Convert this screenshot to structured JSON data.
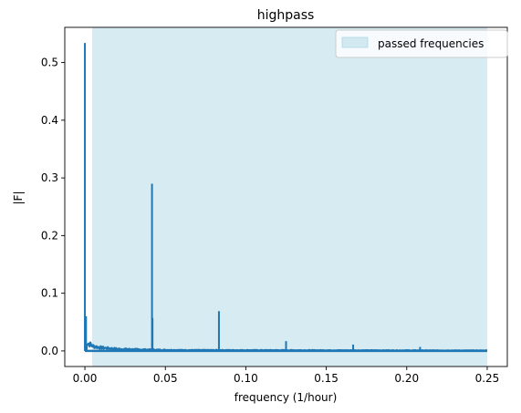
{
  "chart_data": {
    "type": "line",
    "title": "highpass",
    "xlabel": "frequency (1/hour)",
    "ylabel": "|F|",
    "xlim": [
      -0.0125,
      0.2625
    ],
    "ylim": [
      -0.027,
      0.561
    ],
    "xticks": [
      0.0,
      0.05,
      0.1,
      0.15,
      0.2,
      0.25
    ],
    "xtick_labels": [
      "0.00",
      "0.05",
      "0.10",
      "0.15",
      "0.20",
      "0.25"
    ],
    "yticks": [
      0.0,
      0.1,
      0.2,
      0.3,
      0.4,
      0.5
    ],
    "ytick_labels": [
      "0.0",
      "0.1",
      "0.2",
      "0.3",
      "0.4",
      "0.5"
    ],
    "grid": false,
    "legend": {
      "position": "top-right",
      "entries": [
        "passed frequencies"
      ]
    },
    "passband": {
      "name": "passed frequencies",
      "x_start": 0.0045,
      "x_end": 0.25,
      "color": "#add8e6"
    },
    "series": [
      {
        "color": "#1f77b4",
        "peaks": [
          {
            "x": 0.0,
            "y": 0.534
          },
          {
            "x": 0.0007,
            "y": 0.06
          },
          {
            "x": 0.0417,
            "y": 0.29
          },
          {
            "x": 0.042,
            "y": 0.057
          },
          {
            "x": 0.0833,
            "y": 0.069
          },
          {
            "x": 0.125,
            "y": 0.017
          },
          {
            "x": 0.1667,
            "y": 0.011
          },
          {
            "x": 0.2083,
            "y": 0.007
          }
        ],
        "noise_floor": [
          {
            "x": 0.001,
            "y": 0.022
          },
          {
            "x": 0.005,
            "y": 0.012
          },
          {
            "x": 0.01,
            "y": 0.008
          },
          {
            "x": 0.02,
            "y": 0.005
          },
          {
            "x": 0.04,
            "y": 0.003
          },
          {
            "x": 0.06,
            "y": 0.002
          },
          {
            "x": 0.25,
            "y": 0.001
          }
        ]
      }
    ]
  }
}
